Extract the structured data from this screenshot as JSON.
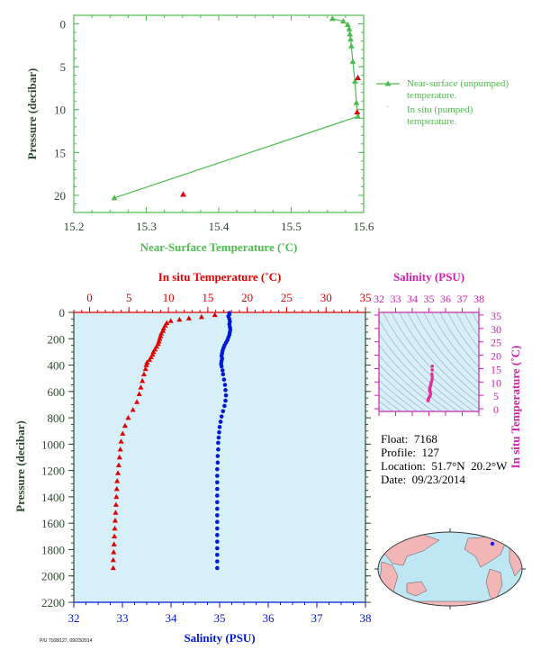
{
  "colors": {
    "green": "#4dbb4d",
    "red": "#e00000",
    "blue": "#0019d6",
    "magenta": "#cc22aa",
    "axis_text": "#2e4a2e",
    "panel_bg": "#d6eff9"
  },
  "meta": {
    "float": "Float:  7168",
    "profile": "Profile:  127",
    "location": "Location:  51.7°N  20.2°W",
    "date": "Date:  09/23/2014"
  },
  "footer_text": "P/U 7168/127, 09/23/2014",
  "chart_data": [
    {
      "id": "near-surface",
      "type": "line",
      "xlabel": "Near-Surface Temperature (˚C)",
      "ylabel": "Pressure (decibar)",
      "xlim": [
        15.2,
        15.6
      ],
      "xticks": [
        "15.2",
        "15.3",
        "15.4",
        "15.5",
        "15.6"
      ],
      "ylim": [
        22,
        -1
      ],
      "yticks": [
        "0",
        "5",
        "10",
        "15",
        "20"
      ],
      "legend": "right",
      "series": [
        {
          "name": "Near-surface (unpumped) temperature.",
          "marker": "triangle",
          "points": [
            [
              15.557,
              -0.6
            ],
            [
              15.572,
              -0.3
            ],
            [
              15.578,
              0.1
            ],
            [
              15.58,
              0.6
            ],
            [
              15.581,
              1.2
            ],
            [
              15.582,
              1.8
            ],
            [
              15.583,
              2.6
            ],
            [
              15.585,
              4.4
            ],
            [
              15.588,
              6.7
            ],
            [
              15.59,
              9.2
            ],
            [
              15.592,
              10.8
            ],
            [
              15.256,
              20.3
            ]
          ]
        },
        {
          "name": "In situ (pumped) temperature.",
          "marker": "triangle",
          "points": [
            [
              15.592,
              6.3
            ],
            [
              15.591,
              10.3
            ],
            [
              15.351,
              19.9
            ]
          ]
        }
      ]
    },
    {
      "id": "profile",
      "type": "scatter",
      "ylabel": "Pressure (decibar)",
      "ylim": [
        2200,
        0
      ],
      "yticks": [
        "0",
        "200",
        "400",
        "600",
        "800",
        "1000",
        "1200",
        "1400",
        "1600",
        "1800",
        "2000",
        "2200"
      ],
      "top_axis": {
        "label": "In situ Temperature (˚C)",
        "lim": [
          -2,
          35
        ],
        "ticks": [
          "0",
          "5",
          "10",
          "15",
          "20",
          "25",
          "30",
          "35"
        ]
      },
      "bottom_axis": {
        "label": "Salinity (PSU)",
        "lim": [
          32,
          38
        ],
        "ticks": [
          "32",
          "33",
          "34",
          "35",
          "36",
          "37",
          "38"
        ]
      },
      "series": [
        {
          "name": "In situ temperature",
          "marker": "triangle",
          "points": [
            [
              15.9,
              20
            ],
            [
              14.2,
              35
            ],
            [
              12.6,
              45
            ],
            [
              11.4,
              55
            ],
            [
              10.3,
              65
            ],
            [
              9.8,
              80
            ],
            [
              9.6,
              100
            ],
            [
              9.4,
              120
            ],
            [
              9.3,
              140
            ],
            [
              9.1,
              160
            ],
            [
              9.0,
              180
            ],
            [
              8.9,
              200
            ],
            [
              8.8,
              220
            ],
            [
              8.7,
              240
            ],
            [
              8.5,
              260
            ],
            [
              8.3,
              280
            ],
            [
              8.1,
              300
            ],
            [
              8.0,
              320
            ],
            [
              7.8,
              340
            ],
            [
              7.6,
              360
            ],
            [
              7.3,
              380
            ],
            [
              7.2,
              400
            ],
            [
              7.1,
              430
            ],
            [
              6.9,
              470
            ],
            [
              6.7,
              520
            ],
            [
              6.5,
              570
            ],
            [
              6.3,
              620
            ],
            [
              6.0,
              680
            ],
            [
              5.5,
              740
            ],
            [
              4.9,
              800
            ],
            [
              4.5,
              860
            ],
            [
              4.2,
              920
            ],
            [
              4.0,
              980
            ],
            [
              3.9,
              1040
            ],
            [
              3.8,
              1100
            ],
            [
              3.7,
              1160
            ],
            [
              3.6,
              1220
            ],
            [
              3.5,
              1280
            ],
            [
              3.45,
              1340
            ],
            [
              3.4,
              1400
            ],
            [
              3.35,
              1460
            ],
            [
              3.3,
              1520
            ],
            [
              3.25,
              1580
            ],
            [
              3.2,
              1640
            ],
            [
              3.15,
              1700
            ],
            [
              3.1,
              1760
            ],
            [
              3.05,
              1820
            ],
            [
              3.0,
              1880
            ],
            [
              3.0,
              1940
            ]
          ]
        },
        {
          "name": "Salinity",
          "marker": "dot",
          "points": [
            [
              35.2,
              5
            ],
            [
              35.2,
              15
            ],
            [
              35.18,
              30
            ],
            [
              35.2,
              50
            ],
            [
              35.21,
              70
            ],
            [
              35.2,
              90
            ],
            [
              35.21,
              110
            ],
            [
              35.22,
              130
            ],
            [
              35.21,
              150
            ],
            [
              35.2,
              170
            ],
            [
              35.18,
              190
            ],
            [
              35.16,
              210
            ],
            [
              35.13,
              230
            ],
            [
              35.1,
              250
            ],
            [
              35.08,
              270
            ],
            [
              35.06,
              290
            ],
            [
              35.05,
              310
            ],
            [
              35.04,
              330
            ],
            [
              35.05,
              350
            ],
            [
              35.04,
              370
            ],
            [
              35.03,
              390
            ],
            [
              35.04,
              410
            ],
            [
              35.06,
              440
            ],
            [
              35.07,
              470
            ],
            [
              35.09,
              510
            ],
            [
              35.11,
              550
            ],
            [
              35.12,
              590
            ],
            [
              35.13,
              630
            ],
            [
              35.12,
              670
            ],
            [
              35.1,
              710
            ],
            [
              35.07,
              750
            ],
            [
              35.04,
              790
            ],
            [
              35.02,
              830
            ],
            [
              35.0,
              870
            ],
            [
              34.99,
              910
            ],
            [
              34.98,
              950
            ],
            [
              34.97,
              990
            ],
            [
              34.97,
              1040
            ],
            [
              34.96,
              1090
            ],
            [
              34.96,
              1140
            ],
            [
              34.95,
              1190
            ],
            [
              34.95,
              1240
            ],
            [
              34.95,
              1290
            ],
            [
              34.95,
              1340
            ],
            [
              34.95,
              1390
            ],
            [
              34.95,
              1440
            ],
            [
              34.95,
              1490
            ],
            [
              34.95,
              1540
            ],
            [
              34.95,
              1590
            ],
            [
              34.95,
              1640
            ],
            [
              34.95,
              1690
            ],
            [
              34.95,
              1740
            ],
            [
              34.95,
              1790
            ],
            [
              34.95,
              1840
            ],
            [
              34.95,
              1890
            ],
            [
              34.95,
              1940
            ]
          ]
        }
      ]
    },
    {
      "id": "ts-diagram",
      "type": "scatter",
      "xlabel": "Salinity (PSU)",
      "ylabel": "In situ Temperature (˚C)",
      "xlim": [
        32,
        38
      ],
      "xticks": [
        "32",
        "33",
        "34",
        "35",
        "36",
        "37",
        "38"
      ],
      "ylim": [
        -1,
        36
      ],
      "yticks": [
        "0",
        "5",
        "10",
        "15",
        "20",
        "25",
        "30",
        "35"
      ],
      "grid": "density contours",
      "series": [
        {
          "name": "T-S",
          "marker": "dot",
          "points": [
            [
              35.2,
              15.9
            ],
            [
              35.2,
              14.5
            ],
            [
              35.18,
              13.0
            ],
            [
              35.2,
              12.0
            ],
            [
              35.19,
              11.0
            ],
            [
              35.15,
              10.0
            ],
            [
              35.12,
              9.3
            ],
            [
              35.1,
              8.8
            ],
            [
              35.08,
              8.2
            ],
            [
              35.05,
              7.6
            ],
            [
              35.04,
              7.1
            ],
            [
              35.05,
              6.6
            ],
            [
              35.08,
              6.2
            ],
            [
              35.1,
              5.6
            ],
            [
              35.08,
              5.0
            ],
            [
              35.04,
              4.5
            ],
            [
              35.0,
              4.1
            ],
            [
              34.98,
              3.8
            ],
            [
              34.96,
              3.5
            ],
            [
              34.95,
              3.2
            ],
            [
              34.95,
              3.0
            ]
          ]
        }
      ]
    }
  ]
}
